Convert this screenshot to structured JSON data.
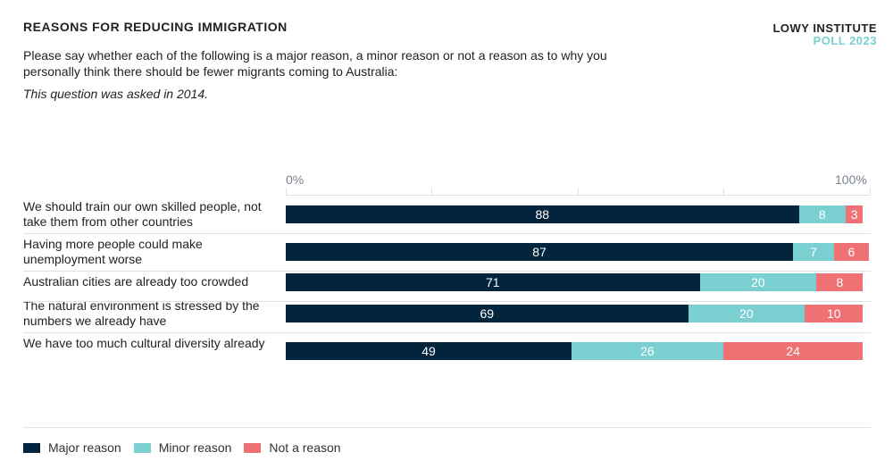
{
  "header": {
    "title": "REASONS FOR REDUCING IMMIGRATION",
    "subtitle": "Please say whether each of the following is a major reason, a minor reason or not a reason as to why you personally think there should be fewer migrants coming to Australia:",
    "note": "This question was asked in 2014.",
    "brand_line1": "LOWY INSTITUTE",
    "brand_line2": "POLL 2023"
  },
  "chart_data": {
    "type": "bar",
    "orientation": "horizontal",
    "stacked": true,
    "xlim": [
      0,
      100
    ],
    "tick_labels": [
      "0%",
      "100%"
    ],
    "categories": [
      "We should train our own skilled people, not take them from other countries",
      "Having more people could make unemployment worse",
      "Australian cities are already too crowded",
      "The natural environment is stressed by the numbers we already have",
      "We have too much cultural diversity already"
    ],
    "series": [
      {
        "name": "Major reason",
        "color": "#02253d",
        "values": [
          88,
          87,
          71,
          69,
          49
        ]
      },
      {
        "name": "Minor reason",
        "color": "#7acfd1",
        "values": [
          8,
          7,
          20,
          20,
          26
        ]
      },
      {
        "name": "Not a reason",
        "color": "#f07174",
        "values": [
          3,
          6,
          8,
          10,
          24
        ]
      }
    ],
    "legend": "bottom-left"
  }
}
